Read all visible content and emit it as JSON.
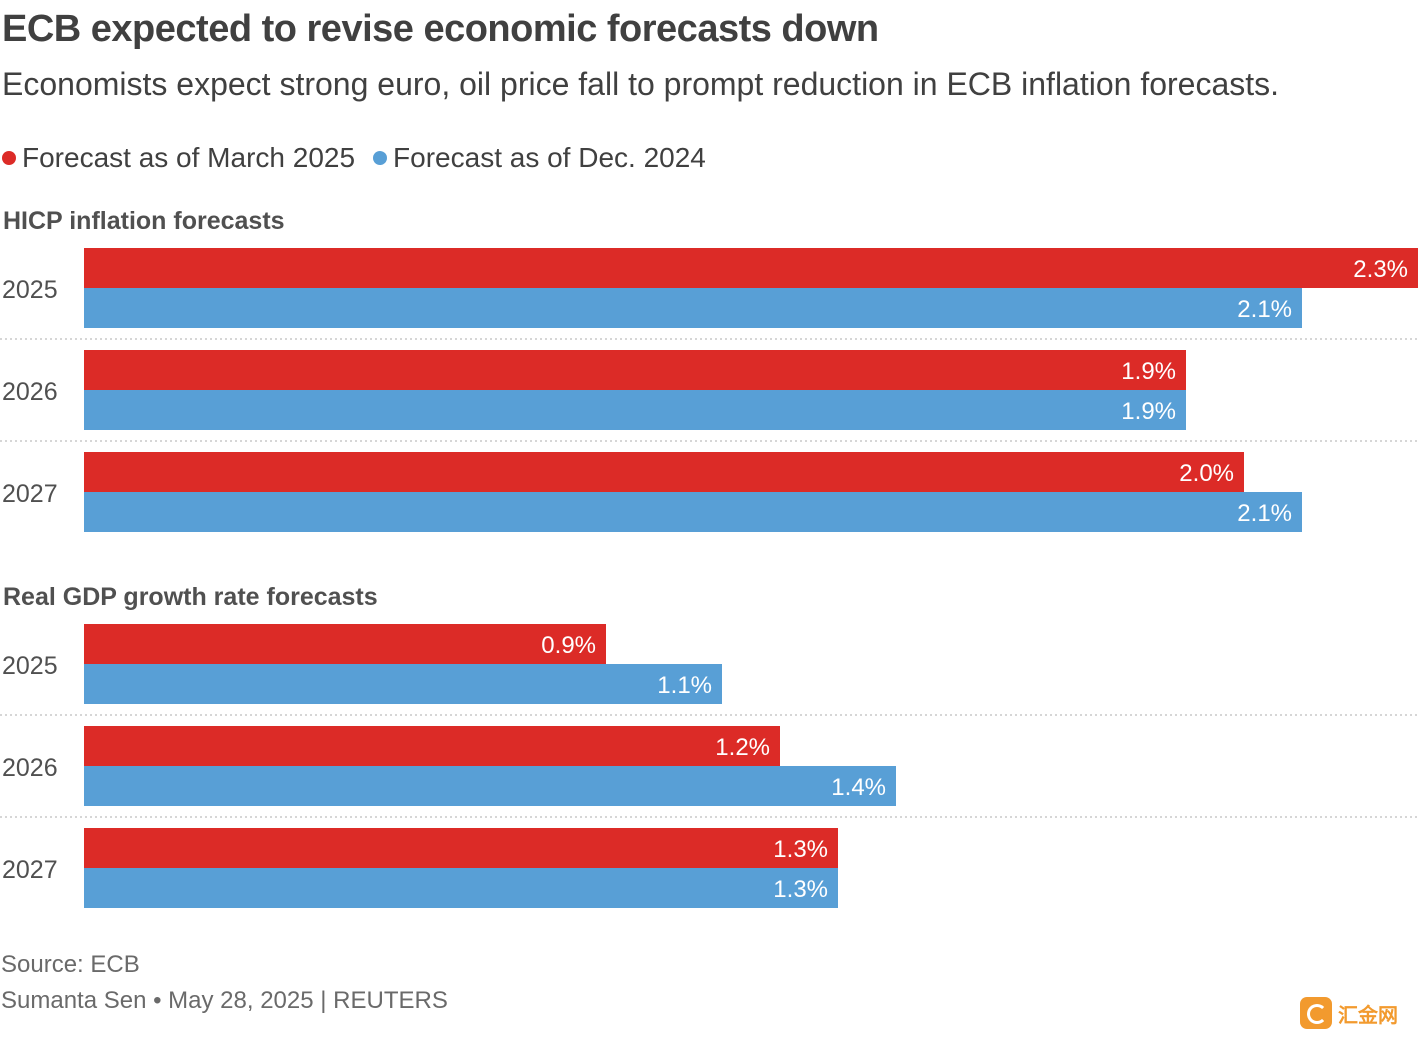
{
  "title": "ECB expected to revise economic forecasts down",
  "subtitle": "Economists expect strong euro, oil price fall to prompt reduction in ECB inflation forecasts.",
  "legend": [
    {
      "label": "Forecast as of March 2025",
      "color": "#dc2b27"
    },
    {
      "label": "Forecast as of Dec. 2024",
      "color": "#589fd6"
    }
  ],
  "chart_data": [
    {
      "type": "bar",
      "orientation": "horizontal",
      "title": "HICP inflation forecasts",
      "categories": [
        "2025",
        "2026",
        "2027"
      ],
      "series": [
        {
          "name": "Forecast as of March 2025",
          "color": "#dc2b27",
          "values": [
            2.3,
            1.9,
            2.0
          ],
          "labels": [
            "2.3%",
            "1.9%",
            "2.0%"
          ]
        },
        {
          "name": "Forecast as of Dec. 2024",
          "color": "#589fd6",
          "values": [
            2.1,
            1.9,
            2.1
          ],
          "labels": [
            "2.1%",
            "1.9%",
            "2.1%"
          ]
        }
      ],
      "grid": false
    },
    {
      "type": "bar",
      "orientation": "horizontal",
      "title": "Real GDP growth rate forecasts",
      "categories": [
        "2025",
        "2026",
        "2027"
      ],
      "series": [
        {
          "name": "Forecast as of March 2025",
          "color": "#dc2b27",
          "values": [
            0.9,
            1.2,
            1.3
          ],
          "labels": [
            "0.9%",
            "1.2%",
            "1.3%"
          ]
        },
        {
          "name": "Forecast as of Dec. 2024",
          "color": "#589fd6",
          "values": [
            1.1,
            1.4,
            1.3
          ],
          "labels": [
            "1.1%",
            "1.4%",
            "1.3%"
          ]
        }
      ],
      "grid": false
    }
  ],
  "source": "Source: ECB",
  "byline": "Sumanta Sen • May 28, 2025 | REUTERS",
  "watermark": "汇金网"
}
